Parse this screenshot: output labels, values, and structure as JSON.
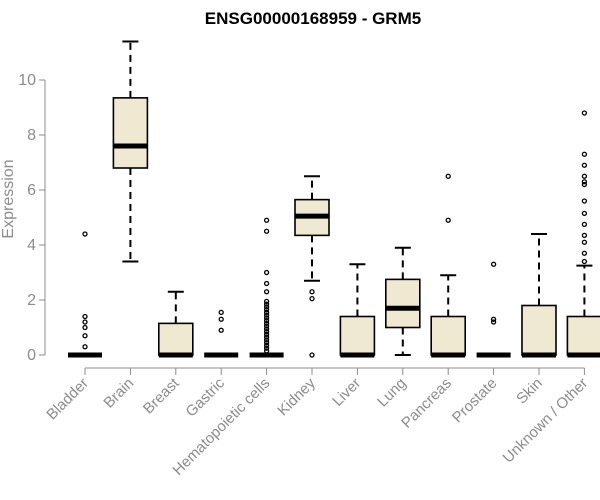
{
  "chart_data": {
    "type": "boxplot",
    "title": "ENSG00000168959 - GRM5",
    "ylabel": "Expression",
    "xlabel": "",
    "ylim": [
      0,
      11.5
    ],
    "yticks": [
      0,
      2,
      4,
      6,
      8,
      10
    ],
    "grid": false,
    "legend": "none",
    "box_fill": "#efe9d2",
    "box_stroke": "#000000",
    "axis_color": "#8c8c8c",
    "categories": [
      "Bladder",
      "Brain",
      "Breast",
      "Gastric",
      "Hematopoietic cells",
      "Kidney",
      "Liver",
      "Lung",
      "Pancreas",
      "Prostate",
      "Skin",
      "Unknown / Other"
    ],
    "boxes": [
      {
        "min": 0,
        "q1": 0,
        "median": 0,
        "q3": 0,
        "max": 0,
        "outliers": [
          4.4,
          1.4,
          1.2,
          1.0,
          0.7,
          0.3
        ]
      },
      {
        "min": 3.4,
        "q1": 6.8,
        "median": 7.6,
        "q3": 9.35,
        "max": 11.4,
        "outliers": []
      },
      {
        "min": 0,
        "q1": 0,
        "median": 0,
        "q3": 1.15,
        "max": 2.3,
        "outliers": []
      },
      {
        "min": 0,
        "q1": 0,
        "median": 0,
        "q3": 0,
        "max": 0,
        "outliers": [
          1.55,
          1.3,
          0.9
        ]
      },
      {
        "min": 0,
        "q1": 0,
        "median": 0,
        "q3": 0,
        "max": 0,
        "outliers": [
          4.9,
          4.5,
          3.0,
          2.6,
          2.3,
          1.95,
          1.85,
          1.75,
          1.65,
          1.55,
          1.45,
          1.35,
          1.25,
          1.15,
          1.05,
          0.95,
          0.85,
          0.75,
          0.65,
          0.55,
          0.45,
          0.35,
          0.25,
          0.15
        ]
      },
      {
        "min": 2.7,
        "q1": 4.35,
        "median": 5.05,
        "q3": 5.65,
        "max": 6.5,
        "outliers": [
          2.3,
          2.05,
          0
        ]
      },
      {
        "min": 0,
        "q1": 0,
        "median": 0,
        "q3": 1.4,
        "max": 3.3,
        "outliers": []
      },
      {
        "min": 0,
        "q1": 1.0,
        "median": 1.7,
        "q3": 2.75,
        "max": 3.9,
        "outliers": []
      },
      {
        "min": 0,
        "q1": 0,
        "median": 0,
        "q3": 1.4,
        "max": 2.9,
        "outliers": [
          6.5,
          4.9
        ]
      },
      {
        "min": 0,
        "q1": 0,
        "median": 0,
        "q3": 0,
        "max": 0,
        "outliers": [
          3.3,
          1.3,
          1.2
        ]
      },
      {
        "min": 0,
        "q1": 0,
        "median": 0,
        "q3": 1.8,
        "max": 4.4,
        "outliers": []
      },
      {
        "min": 0,
        "q1": 0,
        "median": 0,
        "q3": 1.4,
        "max": 3.25,
        "outliers": [
          8.8,
          7.3,
          6.9,
          6.5,
          6.3,
          6.2,
          5.6,
          5.15,
          4.75,
          4.35,
          4.1,
          3.7,
          3.4
        ]
      }
    ]
  }
}
